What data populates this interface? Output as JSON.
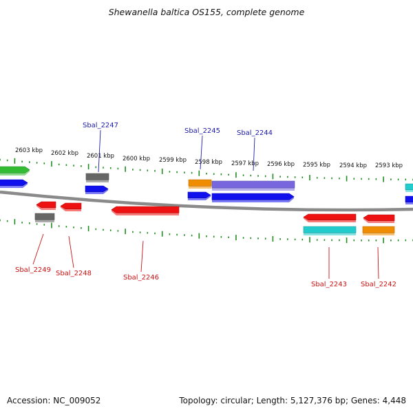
{
  "title": "Shewanella baltica OS155, complete genome",
  "footer": {
    "accession": "Accession: NC_009052",
    "summary": "Topology: circular; Length: 5,127,376 bp; Genes: 4,448"
  },
  "colors": {
    "backbone": "#8a8a8a",
    "tick": "#1e8c1e",
    "label_forward": "#1a1aa8",
    "label_reverse": "#cc1111",
    "red": "#ee1111",
    "blue": "#1111ee",
    "gray": "#666666",
    "orange": "#f08c00",
    "purple": "#7766dd",
    "cyan": "#22cccc",
    "green": "#33bb33"
  },
  "tick_labels": [
    "2603 kbp",
    "2602 kbp",
    "2601 kbp",
    "2600 kbp",
    "2599 kbp",
    "2598 kbp",
    "2597 kbp",
    "2596 kbp",
    "2595 kbp",
    "2594 kbp",
    "2593 kbp"
  ],
  "gene_labels_forward": [
    "Sbal_2247",
    "Sbal_2245",
    "Sbal_2244"
  ],
  "gene_labels_reverse": [
    "Sbal_2249",
    "Sbal_2248",
    "Sbal_2246",
    "Sbal_2243",
    "Sbal_2242"
  ],
  "features": [
    {
      "id": "green-edge",
      "color": "green"
    },
    {
      "id": "blue-edge-left",
      "color": "blue"
    },
    {
      "id": "gray-2247",
      "color": "gray"
    },
    {
      "id": "blue-2247",
      "color": "blue"
    },
    {
      "id": "orange-2245",
      "color": "orange"
    },
    {
      "id": "purple-2244",
      "color": "purple"
    },
    {
      "id": "blue-2245",
      "color": "blue"
    },
    {
      "id": "blue-2244",
      "color": "blue"
    },
    {
      "id": "cyan-edge",
      "color": "cyan"
    },
    {
      "id": "blue-edge-right",
      "color": "blue"
    },
    {
      "id": "red-2249",
      "color": "red"
    },
    {
      "id": "gray-2249",
      "color": "gray"
    },
    {
      "id": "red-2248",
      "color": "red"
    },
    {
      "id": "red-2246",
      "color": "red"
    },
    {
      "id": "red-2243",
      "color": "red"
    },
    {
      "id": "cyan-2243",
      "color": "cyan"
    },
    {
      "id": "red-2242",
      "color": "red"
    },
    {
      "id": "orange-2242",
      "color": "orange"
    }
  ]
}
